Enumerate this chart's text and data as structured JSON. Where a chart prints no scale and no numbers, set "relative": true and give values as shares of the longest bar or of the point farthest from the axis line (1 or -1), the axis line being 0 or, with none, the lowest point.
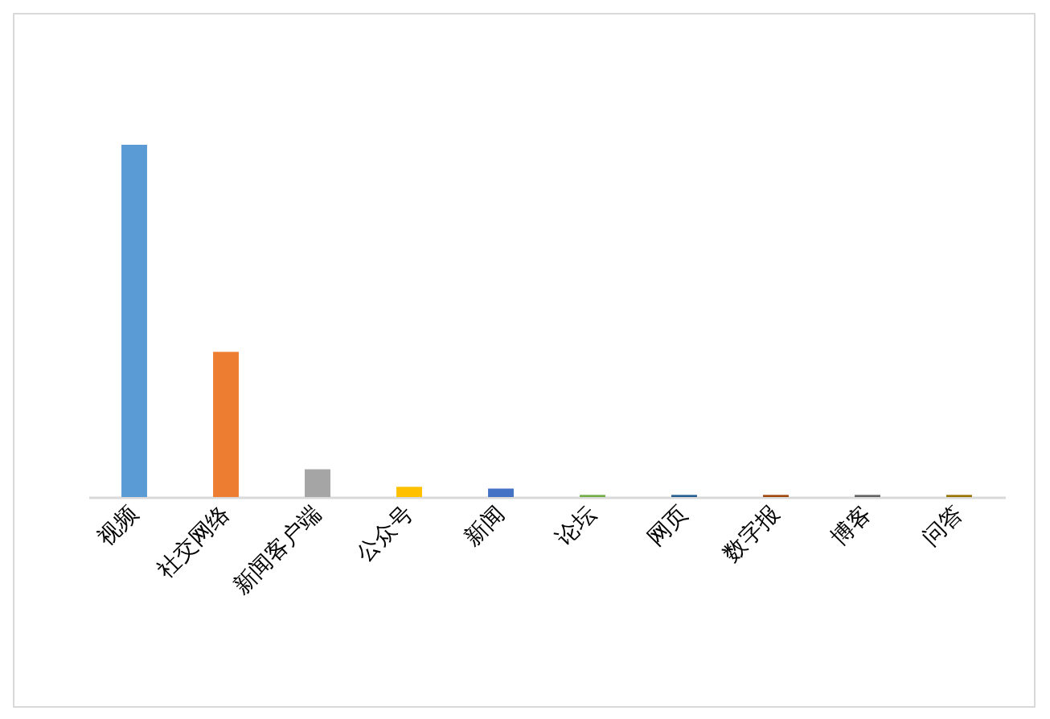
{
  "chart_data": {
    "type": "bar",
    "relative": true,
    "categories": [
      "视频",
      "社交网络",
      "新闻客户端",
      "公众号",
      "新闻",
      "论坛",
      "网页",
      "数字报",
      "博客",
      "问答"
    ],
    "values": [
      1,
      0.412,
      0.079,
      0.029,
      0.024,
      0.006,
      0.006,
      0.006,
      0.006,
      0.006
    ],
    "colors": [
      "#5b9bd5",
      "#ed7d31",
      "#a5a5a5",
      "#ffc000",
      "#4472c4",
      "#70ad47",
      "#255e91",
      "#9e480e",
      "#636363",
      "#997300"
    ],
    "orientation": "vertical"
  }
}
